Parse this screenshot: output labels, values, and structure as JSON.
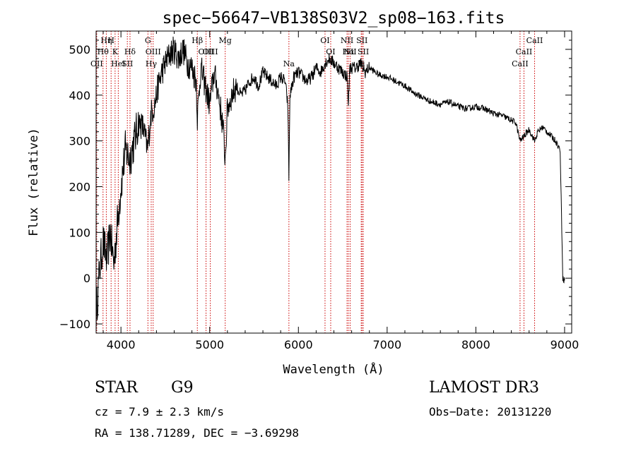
{
  "chart_data": {
    "type": "line",
    "title": "spec−56647−VB138S03V2_sp08−163.fits",
    "xlabel": "Wavelength (Å)",
    "ylabel": "Flux (relative)",
    "xlim": [
      3720,
      9080
    ],
    "ylim": [
      -120,
      540
    ],
    "xticks": [
      4000,
      5000,
      6000,
      7000,
      8000,
      9000
    ],
    "xtick_labels": [
      "4000",
      "5000",
      "6000",
      "7000",
      "8000",
      "9000"
    ],
    "yticks": [
      -100,
      0,
      100,
      200,
      300,
      400,
      500
    ],
    "ytick_labels": [
      "−100",
      "0",
      "100",
      "200",
      "300",
      "400",
      "500"
    ],
    "series": [
      {
        "name": "spectrum",
        "x": [
          3720,
          3760,
          3800,
          3840,
          3880,
          3920,
          3960,
          4000,
          4050,
          4100,
          4150,
          4200,
          4250,
          4300,
          4340,
          4380,
          4420,
          4460,
          4500,
          4550,
          4600,
          4650,
          4700,
          4750,
          4800,
          4850,
          4861,
          4900,
          4950,
          5000,
          5050,
          5100,
          5150,
          5175,
          5200,
          5250,
          5300,
          5350,
          5400,
          5450,
          5500,
          5550,
          5600,
          5650,
          5700,
          5750,
          5800,
          5850,
          5880,
          5893,
          5905,
          5950,
          6000,
          6050,
          6100,
          6150,
          6200,
          6250,
          6300,
          6350,
          6400,
          6450,
          6500,
          6550,
          6563,
          6580,
          6650,
          6700,
          6750,
          6800,
          6900,
          7000,
          7100,
          7200,
          7300,
          7400,
          7500,
          7600,
          7700,
          7800,
          7900,
          8000,
          8100,
          8200,
          8300,
          8400,
          8450,
          8498,
          8542,
          8600,
          8662,
          8700,
          8750,
          8800,
          8850,
          8900,
          8950,
          8980,
          9000
        ],
        "y": [
          -80,
          20,
          80,
          40,
          100,
          30,
          120,
          200,
          280,
          260,
          300,
          340,
          330,
          280,
          360,
          380,
          420,
          450,
          470,
          490,
          500,
          480,
          500,
          470,
          460,
          430,
          350,
          460,
          420,
          380,
          450,
          400,
          330,
          260,
          370,
          400,
          420,
          400,
          410,
          430,
          440,
          420,
          450,
          440,
          430,
          420,
          440,
          430,
          380,
          220,
          400,
          440,
          450,
          440,
          430,
          440,
          460,
          450,
          470,
          480,
          470,
          460,
          450,
          440,
          380,
          460,
          460,
          470,
          450,
          460,
          445,
          440,
          430,
          420,
          405,
          395,
          385,
          380,
          385,
          375,
          370,
          375,
          370,
          360,
          355,
          345,
          340,
          300,
          310,
          325,
          300,
          320,
          330,
          320,
          310,
          300,
          280,
          0,
          -5
        ]
      }
    ],
    "line_markers": [
      {
        "label": "Hη",
        "wave": 3835,
        "row": 0
      },
      {
        "label": "Hθ",
        "wave": 3798,
        "row": 1
      },
      {
        "label": "OII",
        "wave": 3727,
        "row": 2
      },
      {
        "label": "H",
        "wave": 3889,
        "row": 0
      },
      {
        "label": "K",
        "wave": 3934,
        "row": 1
      },
      {
        "label": "HeI",
        "wave": 3970,
        "row": 2
      },
      {
        "label": "Hδ",
        "wave": 4102,
        "row": 1
      },
      {
        "label": "SII",
        "wave": 4072,
        "row": 2
      },
      {
        "label": "G",
        "wave": 4304,
        "row": 0
      },
      {
        "label": "OIII",
        "wave": 4363,
        "row": 1
      },
      {
        "label": "Hγ",
        "wave": 4341,
        "row": 2
      },
      {
        "label": "Hβ",
        "wave": 4861,
        "row": 0
      },
      {
        "label": "OIII",
        "wave": 4959,
        "row": 1
      },
      {
        "label": "OIII",
        "wave": 5007,
        "row": 1
      },
      {
        "label": "Mg",
        "wave": 5175,
        "row": 0
      },
      {
        "label": "Na",
        "wave": 5893,
        "row": 2
      },
      {
        "label": "OI",
        "wave": 6300,
        "row": 0
      },
      {
        "label": "OI",
        "wave": 6364,
        "row": 1
      },
      {
        "label": "NII",
        "wave": 6548,
        "row": 0
      },
      {
        "label": "SII",
        "wave": 6717,
        "row": 0
      },
      {
        "label": "Hα",
        "wave": 6563,
        "row": 1
      },
      {
        "label": "NII",
        "wave": 6583,
        "row": 1
      },
      {
        "label": "SII",
        "wave": 6731,
        "row": 1
      },
      {
        "label": "Li",
        "wave": 6708,
        "row": 2
      },
      {
        "label": "CaII",
        "wave": 8662,
        "row": 0
      },
      {
        "label": "CaII",
        "wave": 8542,
        "row": 1
      },
      {
        "label": "CaII",
        "wave": 8498,
        "row": 2
      }
    ]
  },
  "info": {
    "object_class": "STAR",
    "subclass": "G9",
    "survey": "LAMOST DR3",
    "cz_text": "cz = 7.9 ± 2.3 km/s",
    "obs_date_text": "Obs−Date: 20131220",
    "radec_text": "RA = 138.71289, DEC =  −3.69298"
  },
  "colors": {
    "spectrum": "#000000",
    "line_markers": "#cc0000",
    "axes": "#000000"
  }
}
